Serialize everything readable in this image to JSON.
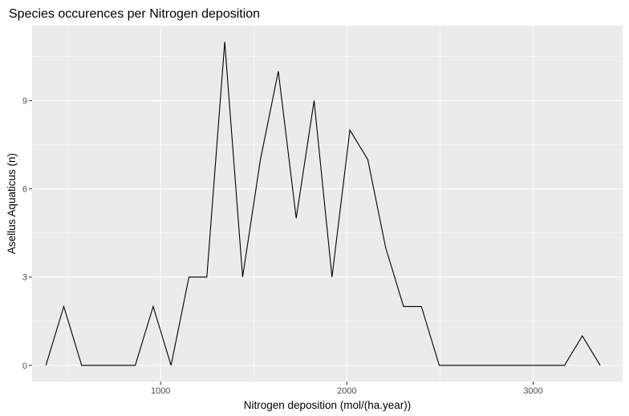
{
  "chart_data": {
    "type": "line",
    "title": "Species occurences per Nitrogen deposition",
    "xlabel": "Nitrogen deposition (mol/(ha.year))",
    "ylabel": "Asellus Aquaticus (n)",
    "xlim": [
      310,
      3480
    ],
    "ylim": [
      -0.55,
      11.55
    ],
    "x_ticks": [
      1000,
      2000,
      3000
    ],
    "y_ticks": [
      0,
      3,
      6,
      9
    ],
    "x_tick_labels": [
      "1000",
      "2000",
      "3000"
    ],
    "y_tick_labels": [
      "0",
      "3",
      "6",
      "9"
    ],
    "grid": true,
    "background": "#ebebeb",
    "grid_color": "#ffffff",
    "line_color": "#000000",
    "series": [
      {
        "x": [
          384,
          480,
          576,
          672,
          768,
          864,
          960,
          1056,
          1152,
          1248,
          1344,
          1440,
          1536,
          1632,
          1728,
          1824,
          1920,
          2016,
          2112,
          2208,
          2304,
          2400,
          2496,
          2592,
          2688,
          2784,
          2880,
          2976,
          3072,
          3168,
          3264,
          3360
        ],
        "y": [
          0,
          2,
          0,
          0,
          0,
          0,
          2,
          0,
          3,
          3,
          11,
          3,
          7,
          10,
          5,
          9,
          3,
          8,
          7,
          4,
          2,
          2,
          0,
          0,
          0,
          0,
          0,
          0,
          0,
          0,
          1,
          0
        ]
      }
    ]
  }
}
